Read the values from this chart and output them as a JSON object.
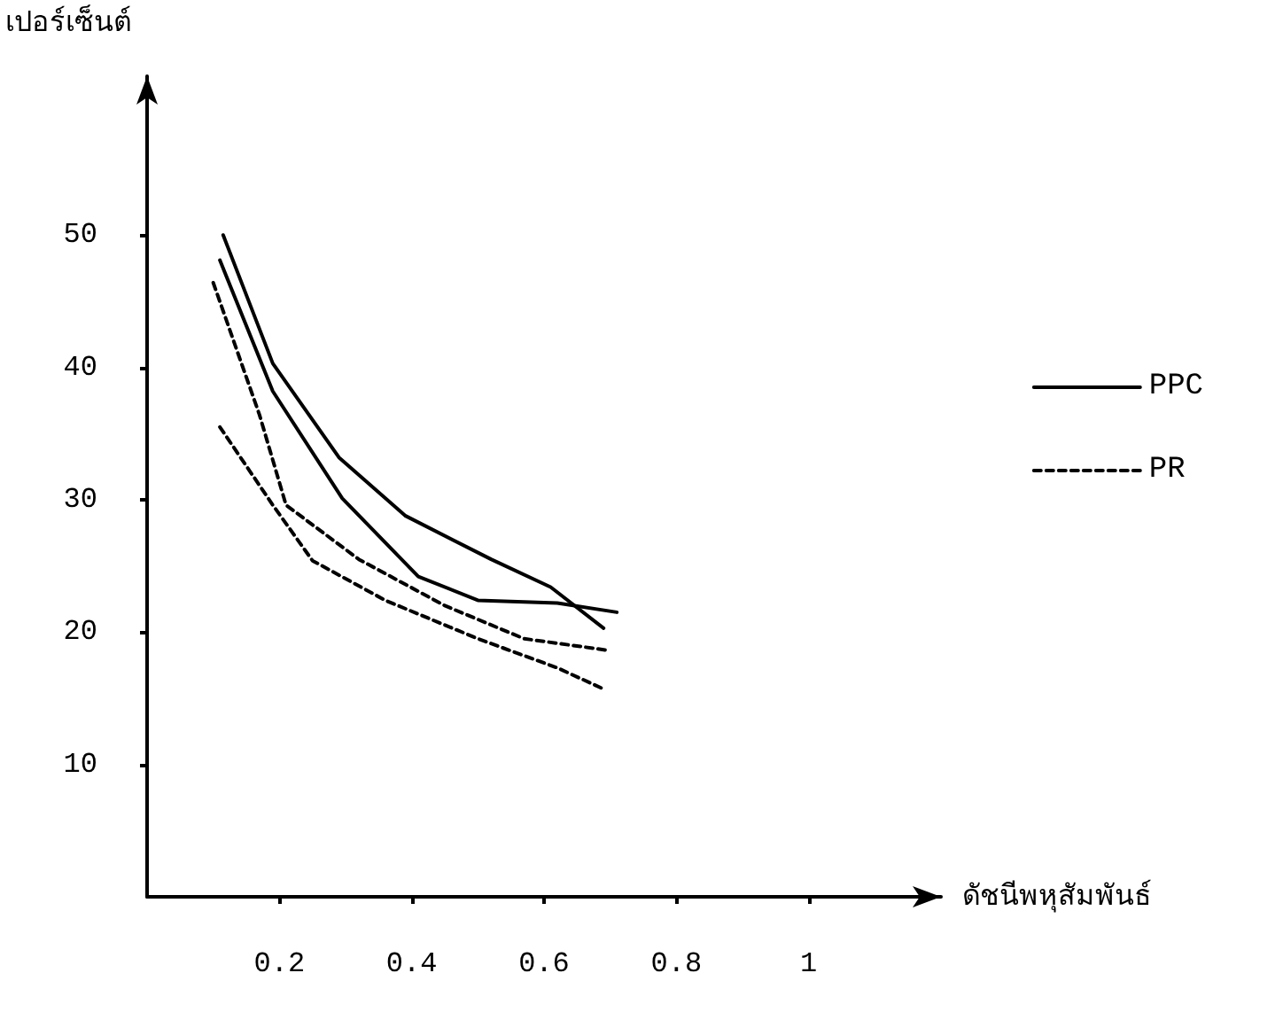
{
  "chart_data": {
    "type": "line",
    "xlabel": "ดัชนีพหุสัมพันธ์",
    "ylabel": "เปอร์เซ็นต์",
    "xlim": [
      0,
      1.2
    ],
    "xticks": [
      0.2,
      0.4,
      0.6,
      0.8,
      1
    ],
    "ylim": [
      0,
      62
    ],
    "yticks": [
      10,
      20,
      30,
      40,
      50
    ],
    "grid": false,
    "marker": "none",
    "legend": "right",
    "series": [
      {
        "name": "PPC",
        "color": "#000000",
        "line_style": "solid",
        "x": [
          0.115,
          0.19,
          0.29,
          0.39,
          0.52,
          0.61,
          0.69
        ],
        "values": [
          50,
          40.3,
          33.2,
          28.8,
          25.5,
          23.4,
          20.3
        ]
      },
      {
        "color": "#000000",
        "line_style": "solid",
        "x": [
          0.11,
          0.19,
          0.295,
          0.41,
          0.5,
          0.62,
          0.71
        ],
        "values": [
          48.1,
          38.2,
          30.1,
          24.2,
          22.4,
          22.2,
          21.5
        ]
      },
      {
        "name": "PR",
        "color": "#000000",
        "line_style": "dotted",
        "x": [
          0.1,
          0.17,
          0.21,
          0.32,
          0.45,
          0.57,
          0.7
        ],
        "values": [
          46.4,
          36.4,
          29.6,
          25.5,
          22,
          19.5,
          18.6
        ]
      },
      {
        "color": "#000000",
        "line_style": "dotted",
        "x": [
          0.11,
          0.19,
          0.25,
          0.36,
          0.5,
          0.62,
          0.69
        ],
        "values": [
          35.5,
          29.6,
          25.4,
          22.4,
          19.5,
          17.3,
          15.7
        ]
      }
    ]
  }
}
